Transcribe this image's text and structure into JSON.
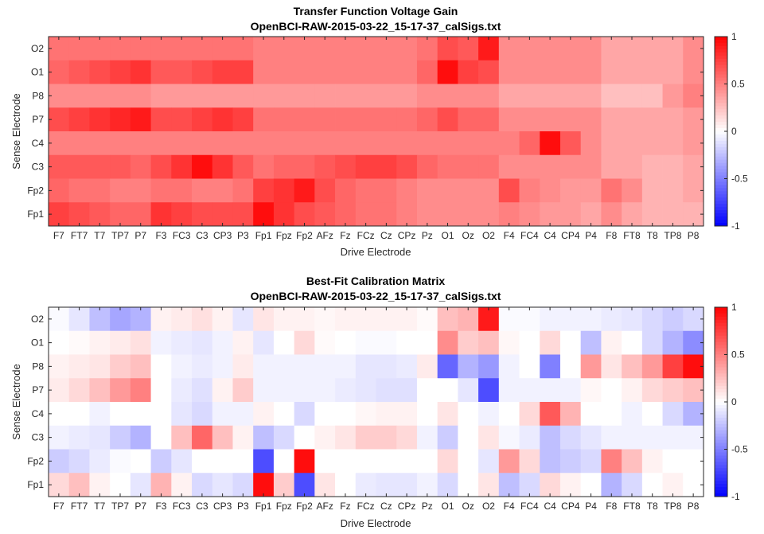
{
  "colors": {
    "neg": "#0000ff",
    "mid": "#ffffff",
    "pos": "#ff0000",
    "axis": "#262626"
  },
  "chart_data": [
    {
      "type": "heatmap",
      "title": "Transfer Function Voltage Gain",
      "subtitle": "OpenBCI-RAW-2015-03-22_15-17-37_calSigs.txt",
      "xlabel": "Drive Electrode",
      "ylabel": "Sense Electrode",
      "x": [
        "F7",
        "FT7",
        "T7",
        "TP7",
        "P7",
        "F3",
        "FC3",
        "C3",
        "CP3",
        "P3",
        "Fp1",
        "Fpz",
        "Fp2",
        "AFz",
        "Fz",
        "FCz",
        "Cz",
        "CPz",
        "Pz",
        "O1",
        "Oz",
        "O2",
        "F4",
        "FC4",
        "C4",
        "CP4",
        "P4",
        "F8",
        "FT8",
        "T8",
        "TP8",
        "P8"
      ],
      "y": [
        "O2",
        "O1",
        "P8",
        "P7",
        "C4",
        "C3",
        "Fp2",
        "Fp1"
      ],
      "clim": [
        -1,
        1
      ],
      "colorbar_ticks": [
        "1",
        "0.5",
        "0",
        "-0.5",
        "-1"
      ],
      "values": [
        [
          0.55,
          0.55,
          0.55,
          0.55,
          0.55,
          0.55,
          0.55,
          0.55,
          0.55,
          0.55,
          0.5,
          0.5,
          0.5,
          0.5,
          0.5,
          0.5,
          0.5,
          0.5,
          0.55,
          0.7,
          0.65,
          0.9,
          0.45,
          0.45,
          0.45,
          0.45,
          0.45,
          0.35,
          0.35,
          0.35,
          0.35,
          0.45
        ],
        [
          0.6,
          0.65,
          0.7,
          0.75,
          0.8,
          0.65,
          0.65,
          0.7,
          0.75,
          0.75,
          0.5,
          0.5,
          0.5,
          0.5,
          0.5,
          0.5,
          0.5,
          0.5,
          0.6,
          0.95,
          0.75,
          0.7,
          0.45,
          0.45,
          0.45,
          0.45,
          0.45,
          0.35,
          0.35,
          0.35,
          0.35,
          0.45
        ],
        [
          0.45,
          0.45,
          0.45,
          0.45,
          0.45,
          0.4,
          0.4,
          0.4,
          0.4,
          0.4,
          0.4,
          0.4,
          0.4,
          0.4,
          0.4,
          0.4,
          0.4,
          0.4,
          0.45,
          0.45,
          0.45,
          0.45,
          0.35,
          0.35,
          0.35,
          0.35,
          0.35,
          0.25,
          0.25,
          0.25,
          0.4,
          0.5
        ],
        [
          0.7,
          0.75,
          0.8,
          0.85,
          0.9,
          0.7,
          0.7,
          0.75,
          0.8,
          0.75,
          0.55,
          0.55,
          0.55,
          0.55,
          0.55,
          0.55,
          0.55,
          0.55,
          0.6,
          0.7,
          0.6,
          0.6,
          0.45,
          0.45,
          0.45,
          0.45,
          0.45,
          0.35,
          0.35,
          0.35,
          0.35,
          0.4
        ],
        [
          0.5,
          0.5,
          0.5,
          0.5,
          0.5,
          0.5,
          0.5,
          0.5,
          0.5,
          0.5,
          0.5,
          0.5,
          0.5,
          0.5,
          0.5,
          0.5,
          0.5,
          0.5,
          0.5,
          0.5,
          0.5,
          0.5,
          0.5,
          0.6,
          0.95,
          0.65,
          0.45,
          0.35,
          0.35,
          0.35,
          0.35,
          0.4
        ],
        [
          0.65,
          0.65,
          0.65,
          0.65,
          0.6,
          0.7,
          0.8,
          0.95,
          0.8,
          0.65,
          0.55,
          0.6,
          0.6,
          0.65,
          0.7,
          0.75,
          0.75,
          0.7,
          0.6,
          0.55,
          0.55,
          0.55,
          0.45,
          0.45,
          0.45,
          0.45,
          0.45,
          0.35,
          0.35,
          0.3,
          0.3,
          0.35
        ],
        [
          0.6,
          0.55,
          0.55,
          0.5,
          0.5,
          0.55,
          0.55,
          0.5,
          0.5,
          0.55,
          0.75,
          0.8,
          0.9,
          0.7,
          0.6,
          0.55,
          0.55,
          0.5,
          0.45,
          0.45,
          0.45,
          0.45,
          0.7,
          0.5,
          0.45,
          0.4,
          0.4,
          0.55,
          0.45,
          0.3,
          0.3,
          0.35
        ],
        [
          0.75,
          0.7,
          0.65,
          0.6,
          0.6,
          0.8,
          0.75,
          0.7,
          0.7,
          0.7,
          0.95,
          0.8,
          0.7,
          0.65,
          0.6,
          0.55,
          0.55,
          0.5,
          0.45,
          0.45,
          0.45,
          0.45,
          0.5,
          0.45,
          0.4,
          0.4,
          0.35,
          0.45,
          0.35,
          0.3,
          0.3,
          0.3
        ]
      ]
    },
    {
      "type": "heatmap",
      "title": "Best-Fit Calibration Matrix",
      "subtitle": "OpenBCI-RAW-2015-03-22_15-17-37_calSigs.txt",
      "xlabel": "Drive Electrode",
      "ylabel": "Sense Electrode",
      "x": [
        "F7",
        "FT7",
        "T7",
        "TP7",
        "P7",
        "F3",
        "FC3",
        "C3",
        "CP3",
        "P3",
        "Fp1",
        "Fpz",
        "Fp2",
        "AFz",
        "Fz",
        "FCz",
        "Cz",
        "CPz",
        "Pz",
        "O1",
        "Oz",
        "O2",
        "F4",
        "FC4",
        "C4",
        "CP4",
        "P4",
        "F8",
        "FT8",
        "T8",
        "TP8",
        "P8"
      ],
      "y": [
        "O2",
        "O1",
        "P8",
        "P7",
        "C4",
        "C3",
        "Fp2",
        "Fp1"
      ],
      "clim": [
        -1,
        1
      ],
      "colorbar_ticks": [
        "1",
        "0.5",
        "0",
        "-0.5",
        "-1"
      ],
      "values": [
        [
          -0.02,
          -0.1,
          -0.25,
          -0.35,
          -0.3,
          0.05,
          0.08,
          0.12,
          0.05,
          -0.1,
          0.1,
          0.05,
          0.05,
          0.03,
          0.05,
          0.05,
          0.05,
          0.05,
          0.02,
          0.25,
          0.3,
          0.9,
          -0.02,
          -0.02,
          -0.05,
          -0.05,
          -0.05,
          -0.08,
          -0.1,
          -0.15,
          -0.2,
          -0.15
        ],
        [
          0.0,
          0.02,
          0.05,
          0.08,
          0.12,
          -0.05,
          -0.08,
          -0.1,
          -0.05,
          0.05,
          -0.1,
          0.0,
          0.15,
          0.02,
          0.0,
          -0.02,
          -0.02,
          0.0,
          0.0,
          0.45,
          0.2,
          0.25,
          0.03,
          0.0,
          0.15,
          0.0,
          -0.25,
          0.05,
          0.0,
          -0.15,
          -0.3,
          -0.45
        ],
        [
          0.05,
          0.08,
          0.1,
          0.2,
          0.25,
          0.0,
          -0.05,
          -0.08,
          -0.05,
          0.08,
          -0.05,
          -0.05,
          -0.05,
          -0.05,
          -0.05,
          -0.1,
          -0.1,
          -0.08,
          0.08,
          -0.6,
          -0.3,
          -0.4,
          -0.05,
          0.0,
          -0.5,
          0.0,
          0.4,
          0.1,
          0.25,
          0.4,
          0.75,
          0.95
        ],
        [
          0.08,
          0.15,
          0.25,
          0.4,
          0.5,
          0.0,
          -0.08,
          -0.12,
          0.05,
          0.2,
          -0.05,
          -0.05,
          -0.05,
          -0.05,
          -0.08,
          -0.1,
          -0.12,
          -0.12,
          0.0,
          0.0,
          -0.1,
          -0.7,
          -0.05,
          -0.05,
          -0.05,
          -0.05,
          0.03,
          0.0,
          0.05,
          0.15,
          0.2,
          0.25
        ],
        [
          0.0,
          0.0,
          -0.05,
          0.0,
          0.0,
          0.0,
          -0.1,
          -0.15,
          -0.05,
          -0.05,
          0.05,
          0.0,
          -0.15,
          0.0,
          0.0,
          0.03,
          0.05,
          0.05,
          0.0,
          0.1,
          0.0,
          -0.05,
          0.0,
          0.15,
          0.65,
          0.3,
          0.0,
          0.0,
          -0.05,
          0.0,
          -0.15,
          -0.3
        ],
        [
          -0.05,
          -0.08,
          -0.1,
          -0.2,
          -0.3,
          0.0,
          0.25,
          0.6,
          0.25,
          0.05,
          -0.25,
          -0.15,
          0.0,
          0.05,
          0.1,
          0.2,
          0.2,
          0.15,
          -0.05,
          -0.2,
          0.0,
          0.1,
          -0.03,
          -0.08,
          -0.25,
          -0.15,
          -0.1,
          -0.05,
          -0.05,
          -0.05,
          -0.05,
          -0.05
        ],
        [
          -0.2,
          -0.15,
          -0.08,
          -0.02,
          0.0,
          -0.2,
          -0.1,
          0.0,
          0.0,
          0.0,
          -0.7,
          0.0,
          0.95,
          0.0,
          0.0,
          0.0,
          0.0,
          0.0,
          0.0,
          0.15,
          0.0,
          -0.1,
          0.4,
          0.15,
          -0.25,
          -0.2,
          -0.15,
          0.5,
          0.25,
          0.05,
          0.0,
          0.0
        ],
        [
          0.15,
          0.25,
          0.05,
          0.0,
          -0.1,
          0.3,
          0.05,
          -0.15,
          -0.1,
          -0.15,
          0.95,
          0.2,
          -0.7,
          0.1,
          0.0,
          -0.08,
          -0.1,
          -0.1,
          -0.05,
          -0.15,
          0.0,
          0.1,
          -0.25,
          -0.15,
          0.15,
          0.05,
          0.0,
          -0.3,
          -0.15,
          0.0,
          0.05,
          0.0
        ]
      ]
    }
  ]
}
